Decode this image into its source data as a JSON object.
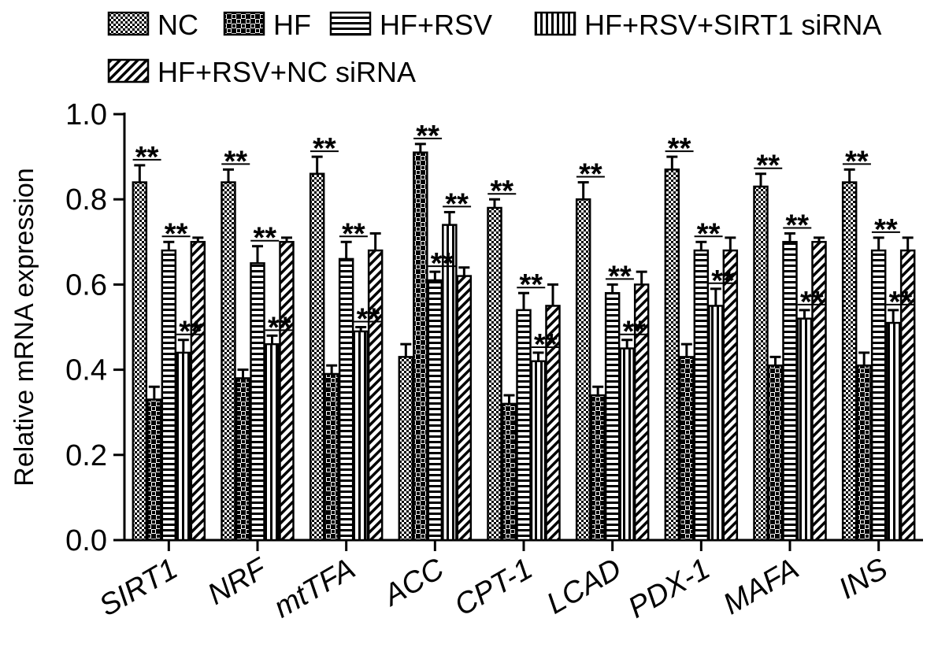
{
  "chart_data": {
    "type": "bar",
    "title": "",
    "xlabel": "",
    "ylabel": "Relative mRNA expression",
    "ylim": [
      0,
      1.0
    ],
    "yticks": [
      "0.0",
      "0.2",
      "0.4",
      "0.6",
      "0.8",
      "1.0"
    ],
    "grid": false,
    "legend_position": "top",
    "categories": [
      "SIRT1",
      "NRF",
      "mtTFA",
      "ACC",
      "CPT-1",
      "LCAD",
      "PDX-1",
      "MAFA",
      "INS"
    ],
    "series": [
      {
        "name": "NC",
        "pattern": "checker-fine",
        "values": [
          0.84,
          0.84,
          0.86,
          0.43,
          0.78,
          0.8,
          0.87,
          0.83,
          0.84
        ],
        "errors": [
          0.04,
          0.03,
          0.04,
          0.03,
          0.02,
          0.04,
          0.03,
          0.03,
          0.03
        ],
        "annotations": [
          "**",
          "**",
          "**",
          "",
          "**",
          "**",
          "**",
          "**",
          "**"
        ]
      },
      {
        "name": "HF",
        "pattern": "checker-coarse",
        "values": [
          0.33,
          0.38,
          0.39,
          0.91,
          0.32,
          0.34,
          0.43,
          0.41,
          0.41
        ],
        "errors": [
          0.03,
          0.02,
          0.02,
          0.02,
          0.02,
          0.02,
          0.03,
          0.02,
          0.03
        ],
        "annotations": [
          "",
          "",
          "",
          "**",
          "",
          "",
          "",
          "",
          ""
        ]
      },
      {
        "name": "HF+RSV",
        "pattern": "horizontal",
        "values": [
          0.68,
          0.65,
          0.66,
          0.61,
          0.54,
          0.58,
          0.68,
          0.7,
          0.68
        ],
        "errors": [
          0.02,
          0.04,
          0.04,
          0.02,
          0.04,
          0.02,
          0.02,
          0.02,
          0.03
        ],
        "annotations": [
          "**",
          "**",
          "**",
          "**",
          "**",
          "**",
          "**",
          "**",
          "**"
        ]
      },
      {
        "name": "HF+RSV+SIRT1 siRNA",
        "pattern": "vertical",
        "values": [
          0.44,
          0.46,
          0.49,
          0.74,
          0.42,
          0.45,
          0.55,
          0.52,
          0.51
        ],
        "errors": [
          0.03,
          0.02,
          0.01,
          0.03,
          0.02,
          0.02,
          0.04,
          0.02,
          0.03
        ],
        "annotations": [
          "**",
          "**",
          "**",
          "**",
          "**",
          "**",
          "**",
          "**",
          "**"
        ]
      },
      {
        "name": "HF+RSV+NC siRNA",
        "pattern": "diagonal",
        "values": [
          0.7,
          0.7,
          0.68,
          0.62,
          0.55,
          0.6,
          0.68,
          0.7,
          0.68
        ],
        "errors": [
          0.01,
          0.01,
          0.04,
          0.02,
          0.05,
          0.03,
          0.03,
          0.01,
          0.03
        ],
        "annotations": [
          "",
          "",
          "",
          "",
          "",
          "",
          "",
          "",
          ""
        ]
      }
    ]
  }
}
